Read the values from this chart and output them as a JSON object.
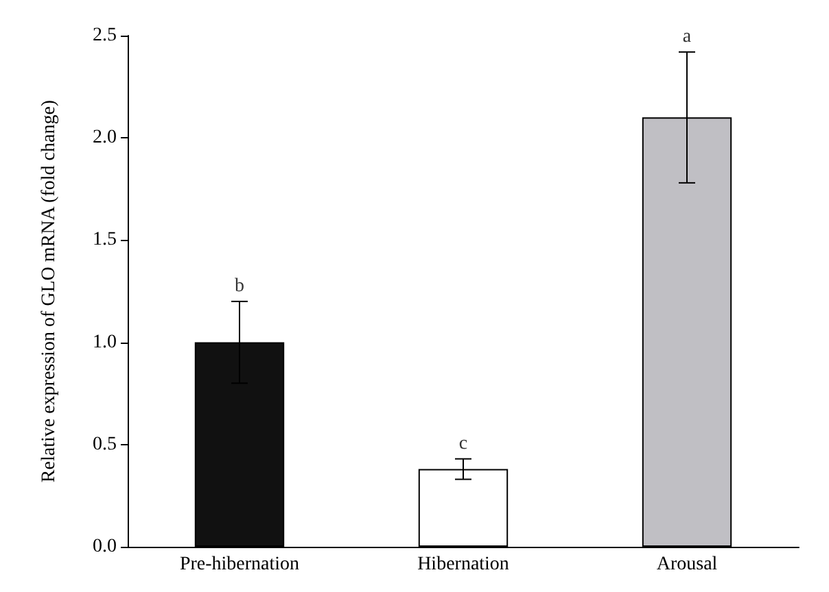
{
  "chart_data": {
    "type": "bar",
    "ylabel": "Relative expression of GLO mRNA (fold change)",
    "categories": [
      "Pre-hibernation",
      "Hibernation",
      "Arousal"
    ],
    "values": [
      1.0,
      0.38,
      2.1
    ],
    "colors": [
      "#111111",
      "#ffffff",
      "#c0bfc4"
    ],
    "errors": [
      0.2,
      0.05,
      0.32
    ],
    "ylim": [
      0,
      2.5
    ],
    "yticks": [
      {
        "value": 0,
        "label": "0.0"
      },
      {
        "value": 0.5,
        "label": "0.5"
      },
      {
        "value": 1,
        "label": "1.0"
      },
      {
        "value": 1.5,
        "label": "1.5"
      },
      {
        "value": 2,
        "label": "2.0"
      },
      {
        "value": 2.5,
        "label": "2.5"
      }
    ],
    "annotations": [
      {
        "text": "b",
        "x": "Pre-hibernation",
        "y": 1.2
      },
      {
        "text": "c",
        "x": "Hibernation",
        "y": 0.43
      },
      {
        "text": "a",
        "x": "Arousal",
        "y": 2.42
      }
    ],
    "grid": false
  }
}
